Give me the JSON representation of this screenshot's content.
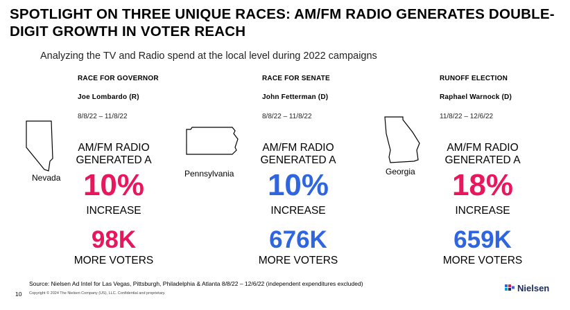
{
  "slide": {
    "title": "SPOTLIGHT ON THREE UNIQUE RACES: AM/FM RADIO GENERATES DOUBLE-DIGIT GROWTH IN VOTER REACH",
    "subtitle": "Analyzing the TV and Radio spend at the local level during 2022 campaigns",
    "source": "Source: Nielsen Ad Intel for Las Vegas,  Pittsburgh, Philadelphia & Atlanta 8/8/22 – 12/6/22 (independent expenditures excluded)",
    "page_number": "10",
    "copyright": "Copyright © 2024 The Nielsen Company (US), LLC. Confidential and proprietary.",
    "logo_text": "Nielsen"
  },
  "colors": {
    "pink": "#e8175d",
    "blue": "#2f66e0",
    "nielsen_navy": "#1a2b5c"
  },
  "races": [
    {
      "type": "RACE FOR GOVERNOR",
      "candidate": "Joe  Lombardo (R)",
      "dates": "8/8/22 – 11/8/22",
      "state": "Nevada",
      "line1": "AM/FM RADIO",
      "line2": "GENERATED A",
      "percent": "10%",
      "increase": "INCREASE",
      "voters": "98K",
      "more": "MORE VOTERS",
      "color": "#e8175d"
    },
    {
      "type": "RACE FOR SENATE",
      "candidate": "John Fetterman (D)",
      "dates": "8/8/22 – 11/8/22",
      "state": "Pennsylvania",
      "line1": "AM/FM RADIO",
      "line2": "GENERATED A",
      "percent": "10%",
      "increase": "INCREASE",
      "voters": "676K",
      "more": "MORE VOTERS",
      "color": "#2f66e0"
    },
    {
      "type": "RUNOFF ELECTION",
      "candidate": "Raphael Warnock (D)",
      "dates": "11/8/22 – 12/6/22",
      "state": "Georgia",
      "line1": "AM/FM RADIO",
      "line2": "GENERATED A",
      "percent": "18%",
      "increase": "INCREASE",
      "voters": "659K",
      "more": "MORE VOTERS",
      "color": "#2f66e0"
    }
  ]
}
